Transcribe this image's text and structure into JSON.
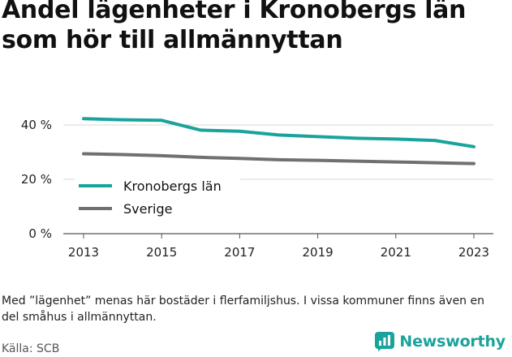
{
  "chart_data": {
    "type": "line",
    "title": "Andel lägenheter i Kronobergs län som hör till allmännyttan",
    "x": [
      2013,
      2014,
      2015,
      2016,
      2017,
      2018,
      2019,
      2020,
      2021,
      2022,
      2023
    ],
    "x_ticks": [
      "2013",
      "2015",
      "2017",
      "2019",
      "2021",
      "2023"
    ],
    "y_ticks": [
      "0 %",
      "20 %",
      "40 %"
    ],
    "ylim": [
      0,
      48
    ],
    "grid": true,
    "legend_position": "left",
    "series": [
      {
        "name": "Kronobergs län",
        "color": "#1aa39c",
        "values": [
          42.3,
          41.9,
          41.7,
          38.1,
          37.7,
          36.3,
          35.7,
          35.1,
          34.8,
          34.3,
          32.0
        ]
      },
      {
        "name": "Sverige",
        "color": "#707070",
        "values": [
          29.4,
          29.1,
          28.7,
          28.1,
          27.7,
          27.2,
          27.0,
          26.7,
          26.4,
          26.1,
          25.8
        ]
      }
    ]
  },
  "note": "Med ”lägenhet” menas här bostäder i flerfamiljshus. I vissa kommuner finns även en del småhus i allmännyttan.",
  "source": "Källa: SCB",
  "brand": {
    "name": "Newsworthy",
    "icon": "newsworthy-logo-icon",
    "color": "#1aa39c"
  }
}
